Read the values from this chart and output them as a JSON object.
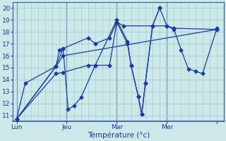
{
  "xlabel": "Température (°c)",
  "ylim": [
    10.5,
    20.5
  ],
  "yticks": [
    11,
    12,
    13,
    14,
    15,
    16,
    17,
    18,
    19,
    20
  ],
  "xtick_positions": [
    0,
    7,
    14,
    21,
    28
  ],
  "xtick_labels": [
    "Lun",
    "Jeu",
    "Mar",
    "Mer",
    ""
  ],
  "vlines": [
    0,
    7,
    14,
    21
  ],
  "bg_color": "#cce8e8",
  "grid_color": "#aacece",
  "line_color": "#1a3aaa",
  "figsize": [
    3.2,
    2.0
  ],
  "dpi": 100,
  "series1_x": [
    0,
    1.2,
    5.5,
    6.0,
    6.5,
    10,
    11,
    13,
    14,
    15,
    21,
    22,
    28
  ],
  "series1_y": [
    10.7,
    13.7,
    15.1,
    16.5,
    16.6,
    17.5,
    17.0,
    17.5,
    18.8,
    18.5,
    18.5,
    18.3,
    18.2
  ],
  "series2_x": [
    0,
    5.5,
    6.5,
    7.2,
    8.0,
    9.0,
    11,
    14,
    15.5,
    16,
    17,
    17.5,
    18,
    19,
    20,
    21,
    22,
    23,
    24,
    25,
    26,
    28
  ],
  "series2_y": [
    10.7,
    15.1,
    16.6,
    11.5,
    11.8,
    12.5,
    15.2,
    19.0,
    17.2,
    15.2,
    12.6,
    11.1,
    13.7,
    18.5,
    20.0,
    18.5,
    18.2,
    16.5,
    14.9,
    14.7,
    14.5,
    18.3
  ],
  "series3_x": [
    0,
    5.5,
    6.5,
    28
  ],
  "series3_y": [
    10.7,
    15.1,
    16.0,
    18.2
  ],
  "series4_x": [
    0,
    5.5,
    6.5,
    10,
    11,
    13,
    14,
    15.5,
    16,
    17,
    17.5,
    18,
    19,
    20
  ],
  "series4_y": [
    10.7,
    14.5,
    14.6,
    15.2,
    15.2,
    15.2,
    18.8,
    17.0,
    15.2,
    12.6,
    11.1,
    13.7,
    18.5,
    20.0
  ]
}
